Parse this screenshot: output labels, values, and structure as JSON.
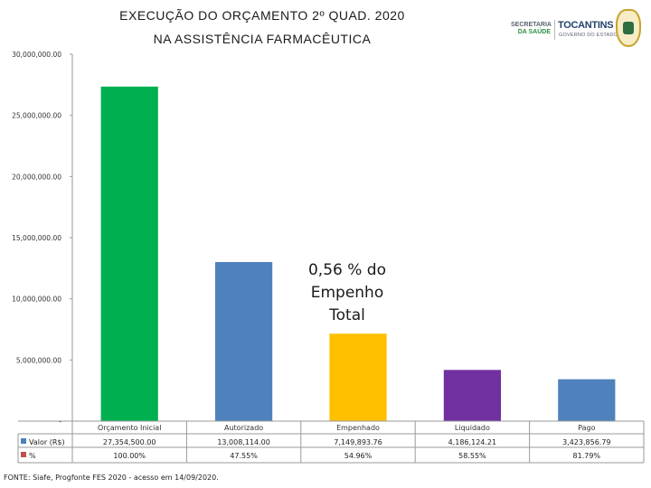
{
  "header": {
    "title_line1": "EXECUÇÃO DO ORÇAMENTO 2º QUAD. 2020",
    "title_line2": "NA ASSISTÊNCIA FARMACÊUTICA",
    "logo_secretaria_line1": "SECRETARIA",
    "logo_secretaria_line2": "DA SAÚDE",
    "logo_tocantins": "TOCANTINS",
    "logo_governo": "GOVERNO DO ESTADO"
  },
  "chart_data": {
    "type": "bar",
    "title": "EXECUÇÃO DO ORÇAMENTO 2º QUAD. 2020 NA ASSISTÊNCIA FARMACÊUTICA",
    "categories": [
      "Orçamento Inicial",
      "Autorizado",
      "Empenhado",
      "Liquidado",
      "Pago"
    ],
    "values": [
      27354500.0,
      13008114.0,
      7149893.76,
      4186124.21,
      3423856.79
    ],
    "colors": [
      "#00b050",
      "#4f81bd",
      "#ffc000",
      "#7030a0",
      "#4f81bd"
    ],
    "ylim": [
      0,
      30000000
    ],
    "yticks": [
      0,
      5000000,
      10000000,
      15000000,
      20000000,
      25000000,
      30000000
    ],
    "ytick_labels": [
      "-",
      "5,000,000.00",
      "10,000,000.00",
      "15,000,000.00",
      "20,000,000.00",
      "25,000,000.00",
      "30,000,000.00"
    ],
    "xlabel": "",
    "ylabel": "",
    "data_table": {
      "rows": [
        {
          "legend": "Valor (R$)",
          "cells": [
            "27,354,500.00",
            "13,008,114.00",
            "7,149,893.76",
            "4,186,124.21",
            "3,423,856.79"
          ]
        },
        {
          "legend": "%",
          "cells": [
            "100.00%",
            "47.55%",
            "54.96%",
            "58.55%",
            "81.79%"
          ]
        }
      ]
    },
    "annotation": {
      "line1": "0,56 % do",
      "line2": "Empenho",
      "line3": "Total"
    },
    "legend_colors": [
      "#4f81bd",
      "#c0504d"
    ]
  },
  "footer": {
    "source": "FONTE: Siafe, Progfonte FES 2020 - acesso em 14/09/2020."
  }
}
